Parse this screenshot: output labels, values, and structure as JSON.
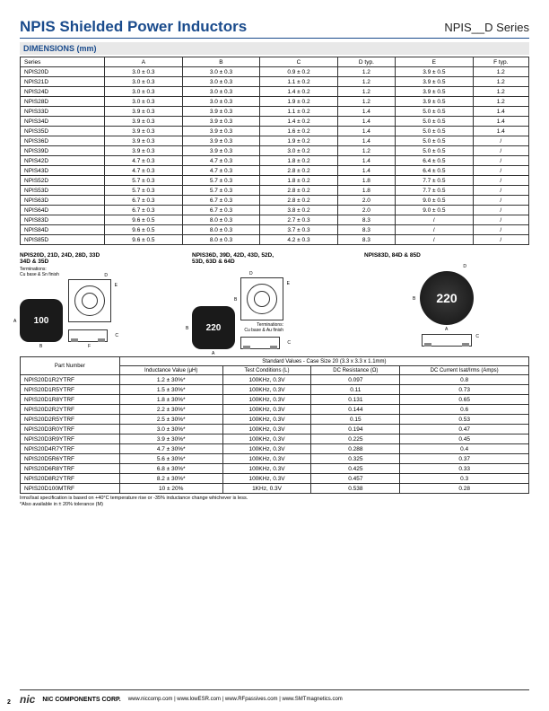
{
  "header": {
    "title": "NPIS Shielded Power Inductors",
    "series": "NPIS__D Series"
  },
  "dimensions": {
    "heading": "DIMENSIONS (mm)",
    "columns": [
      "Series",
      "A",
      "B",
      "C",
      "D typ.",
      "E",
      "F typ."
    ],
    "rows": [
      [
        "NPIS20D",
        "3.0 ± 0.3",
        "3.0 ± 0.3",
        "0.9 ± 0.2",
        "1.2",
        "3.9 ± 0.5",
        "1.2"
      ],
      [
        "NPIS21D",
        "3.0 ± 0.3",
        "3.0 ± 0.3",
        "1.1 ± 0.2",
        "1.2",
        "3.9 ± 0.5",
        "1.2"
      ],
      [
        "NPIS24D",
        "3.0 ± 0.3",
        "3.0 ± 0.3",
        "1.4 ± 0.2",
        "1.2",
        "3.9 ± 0.5",
        "1.2"
      ],
      [
        "NPIS28D",
        "3.0 ± 0.3",
        "3.0 ± 0.3",
        "1.9 ± 0.2",
        "1.2",
        "3.9 ± 0.5",
        "1.2"
      ],
      [
        "NPIS33D",
        "3.9 ± 0.3",
        "3.9 ± 0.3",
        "1.1 ± 0.2",
        "1.4",
        "5.0 ± 0.5",
        "1.4"
      ],
      [
        "NPIS34D",
        "3.9 ± 0.3",
        "3.9 ± 0.3",
        "1.4 ± 0.2",
        "1.4",
        "5.0 ± 0.5",
        "1.4"
      ],
      [
        "NPIS35D",
        "3.9 ± 0.3",
        "3.9 ± 0.3",
        "1.6 ± 0.2",
        "1.4",
        "5.0 ± 0.5",
        "1.4"
      ],
      [
        "NPIS36D",
        "3.9 ± 0.3",
        "3.9 ± 0.3",
        "1.9 ± 0.2",
        "1.4",
        "5.0 ± 0.5",
        "/"
      ],
      [
        "NPIS39D",
        "3.9 ± 0.3",
        "3.9 ± 0.3",
        "3.0 ± 0.2",
        "1.2",
        "5.0 ± 0.5",
        "/"
      ],
      [
        "NPIS42D",
        "4.7 ± 0.3",
        "4.7 ± 0.3",
        "1.8 ± 0.2",
        "1.4",
        "6.4 ± 0.5",
        "/"
      ],
      [
        "NPIS43D",
        "4.7 ± 0.3",
        "4.7 ± 0.3",
        "2.8 ± 0.2",
        "1.4",
        "6.4 ± 0.5",
        "/"
      ],
      [
        "NPIS52D",
        "5.7 ± 0.3",
        "5.7 ± 0.3",
        "1.8 ± 0.2",
        "1.8",
        "7.7 ± 0.5",
        "/"
      ],
      [
        "NPIS53D",
        "5.7 ± 0.3",
        "5.7 ± 0.3",
        "2.8 ± 0.2",
        "1.8",
        "7.7 ± 0.5",
        "/"
      ],
      [
        "NPIS63D",
        "6.7 ± 0.3",
        "6.7 ± 0.3",
        "2.8 ± 0.2",
        "2.0",
        "9.0 ± 0.5",
        "/"
      ],
      [
        "NPIS64D",
        "6.7 ± 0.3",
        "6.7 ± 0.3",
        "3.8 ± 0.2",
        "2.0",
        "9.0 ± 0.5",
        "/"
      ],
      [
        "NPIS83D",
        "9.6 ± 0.5",
        "8.0 ± 0.3",
        "2.7 ± 0.3",
        "8.3",
        "/",
        "/"
      ],
      [
        "NPIS84D",
        "9.6 ± 0.5",
        "8.0 ± 0.3",
        "3.7 ± 0.3",
        "8.3",
        "/",
        "/"
      ],
      [
        "NPIS85D",
        "9.6 ± 0.5",
        "8.0 ± 0.3",
        "4.2 ± 0.3",
        "8.3",
        "/",
        "/"
      ]
    ]
  },
  "diagrams": {
    "group1": {
      "title": "NPIS20D, 21D, 24D, 28D, 33D\n34D & 35D",
      "term_note": "Terminations:\nCu base & Sn finish",
      "marking": "100",
      "labels": {
        "A": "A",
        "B": "B",
        "C": "C",
        "D": "D",
        "E": "E",
        "F": "F"
      }
    },
    "group2": {
      "title": "NPIS36D, 39D, 42D, 43D, 52D,\n53D, 63D & 64D",
      "term_note": "Terminations:\nCu base & Au finish",
      "marking": "220",
      "labels": {
        "A": "A",
        "B": "B",
        "C": "C",
        "D": "D",
        "E": "E"
      }
    },
    "group3": {
      "title": "NPIS83D, 84D & 85D",
      "marking": "220",
      "labels": {
        "A": "A",
        "B": "B",
        "C": "C",
        "D": "D"
      }
    }
  },
  "values": {
    "heading_span": "Standard Values - Case Size 20 (3.3 x 3.3 x 1.1mm)",
    "pn_header": "Part Number",
    "columns": [
      "Inductance Value (µH)",
      "Test Conditions (L)",
      "DC Resistance (Ω)",
      "DC Current Isat/Irms (Amps)"
    ],
    "rows": [
      [
        "NPIS20D1R2YTRF",
        "1.2 ± 30%*",
        "100KHz, 0.3V",
        "0.097",
        "0.8"
      ],
      [
        "NPIS20D1R5YTRF",
        "1.5 ± 30%*",
        "100KHz, 0.3V",
        "0.11",
        "0.73"
      ],
      [
        "NPIS20D1R8YTRF",
        "1.8 ± 30%*",
        "100KHz, 0.3V",
        "0.131",
        "0.65"
      ],
      [
        "NPIS20D2R2YTRF",
        "2.2 ± 30%*",
        "100KHz, 0.3V",
        "0.144",
        "0.6"
      ],
      [
        "NPIS20D2R5YTRF",
        "2.5 ± 30%*",
        "100KHz, 0.3V",
        "0.15",
        "0.53"
      ],
      [
        "NPIS20D3R0YTRF",
        "3.0 ± 30%*",
        "100KHz, 0.3V",
        "0.194",
        "0.47"
      ],
      [
        "NPIS20D3R9YTRF",
        "3.9 ± 30%*",
        "100KHz, 0.3V",
        "0.225",
        "0.45"
      ],
      [
        "NPIS20D4R7YTRF",
        "4.7 ± 30%*",
        "100KHz, 0.3V",
        "0.288",
        "0.4"
      ],
      [
        "NPIS20D5R6YTRF",
        "5.6 ± 30%*",
        "100KHz, 0.3V",
        "0.325",
        "0.37"
      ],
      [
        "NPIS20D6R8YTRF",
        "6.8 ± 30%*",
        "100KHz, 0.3V",
        "0.425",
        "0.33"
      ],
      [
        "NPIS20D8R2YTRF",
        "8.2 ± 30%*",
        "100KHz, 0.3V",
        "0.457",
        "0.3"
      ],
      [
        "NPIS20D100MTRF",
        "10 ± 20%",
        "1KHz, 0.3V",
        "0.538",
        "0.28"
      ]
    ]
  },
  "footnote": {
    "line1": "Irms/Isat specification is based on +40°C temperature rise or -35% inductance change whichever is less.",
    "line2": "*Also available in ± 20% tolerance (M)"
  },
  "footer": {
    "logo": "nic",
    "corp": "NIC COMPONENTS CORP.",
    "urls": [
      "www.niccomp.com",
      "www.lowESR.com",
      "www.RFpassives.com",
      "www.SMTmagnetics.com"
    ],
    "sep": " | "
  },
  "page_number": "2"
}
